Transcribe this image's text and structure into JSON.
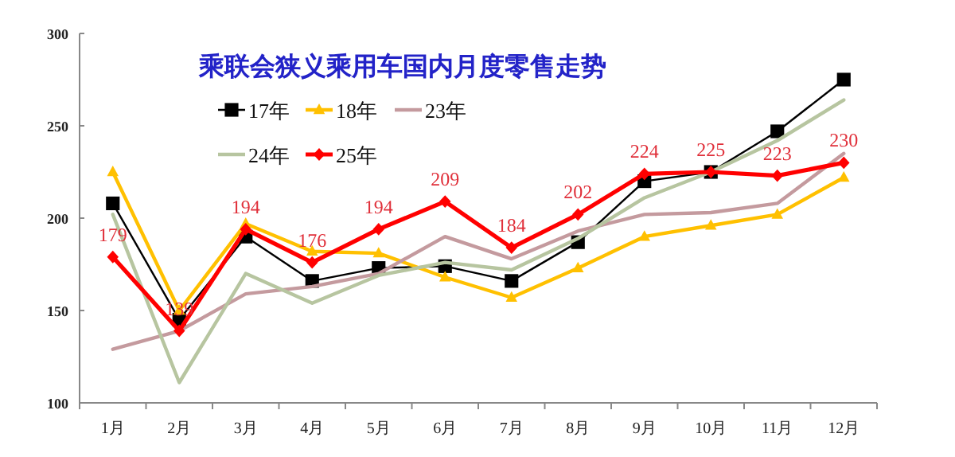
{
  "chart_data": {
    "type": "line",
    "title": "乘联会狭义乘用车国内月度零售走势",
    "categories": [
      "1月",
      "2月",
      "3月",
      "4月",
      "5月",
      "6月",
      "7月",
      "8月",
      "9月",
      "10月",
      "11月",
      "12月"
    ],
    "series": [
      {
        "name": "17年",
        "color": "#000000",
        "marker": "square",
        "values": [
          208,
          145,
          190,
          166,
          173,
          174,
          166,
          187,
          220,
          225,
          247,
          275
        ]
      },
      {
        "name": "18年",
        "color": "#ffc000",
        "marker": "triangle",
        "values": [
          225,
          150,
          197,
          182,
          181,
          168,
          157,
          173,
          190,
          196,
          202,
          222
        ]
      },
      {
        "name": "23年",
        "color": "#c49a9e",
        "marker": "none",
        "values": [
          129,
          139,
          159,
          163,
          170,
          190,
          178,
          193,
          202,
          203,
          208,
          235
        ]
      },
      {
        "name": "24年",
        "color": "#b7c5a0",
        "marker": "none",
        "values": [
          202,
          111,
          170,
          154,
          169,
          176,
          172,
          189,
          211,
          225,
          242,
          264
        ]
      },
      {
        "name": "25年",
        "color": "#ff0000",
        "marker": "diamond",
        "values": [
          179,
          139,
          194,
          176,
          194,
          209,
          184,
          202,
          224,
          225,
          223,
          230
        ],
        "value_labels": [
          "179",
          "139",
          "194",
          "176",
          "194",
          "209",
          "184",
          "202",
          "224",
          "225",
          "223",
          "230"
        ]
      }
    ],
    "ylim": [
      100,
      300
    ],
    "yticks": [
      100,
      150,
      200,
      250,
      300
    ],
    "grid": false,
    "legend": "top left"
  }
}
